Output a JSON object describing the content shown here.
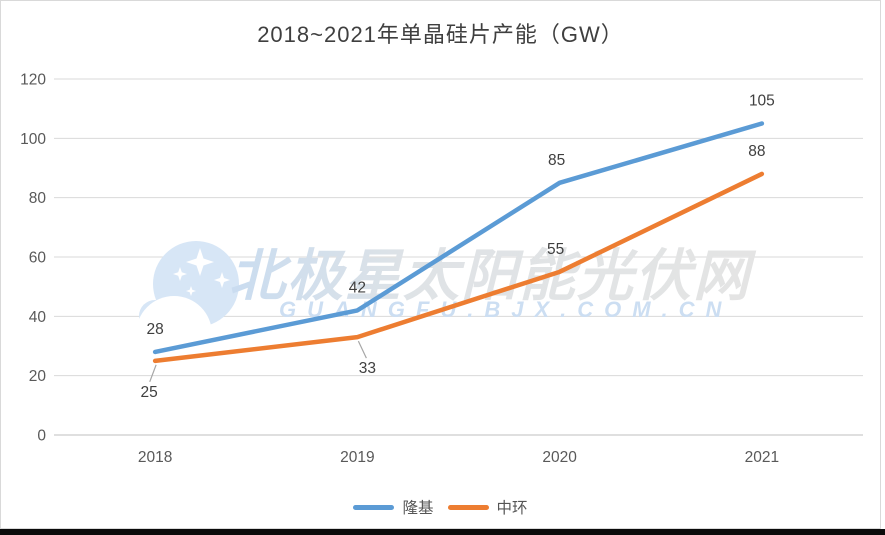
{
  "chart_data": {
    "type": "line",
    "title": "2018~2021年单晶硅片产能（GW）",
    "categories": [
      "2018",
      "2019",
      "2020",
      "2021"
    ],
    "series": [
      {
        "name": "隆基",
        "color": "#5B9BD5",
        "values": [
          28,
          42,
          85,
          105
        ],
        "label_sides": [
          "above",
          "above",
          "above",
          "above"
        ],
        "label_dx": [
          0,
          0,
          -3,
          0
        ]
      },
      {
        "name": "中环",
        "color": "#ED7D31",
        "values": [
          25,
          33,
          55,
          88
        ],
        "label_sides": [
          "below",
          "below",
          "above",
          "above"
        ],
        "label_dx": [
          -6,
          10,
          -4,
          -5
        ]
      }
    ],
    "xlabel": "",
    "ylabel": "",
    "ylim": [
      0,
      120
    ],
    "ytick_step": 20,
    "grid": true,
    "legend_position": "bottom"
  },
  "watermark": {
    "logo": "crescent-moon-with-stars",
    "text": "北极星太阳能光伏网",
    "url": "GUANGFU.BJX.COM.CN"
  },
  "colors": {
    "gridline": "#D9D9D9",
    "zero_axis": "#BFBFBF",
    "leader_line": "#A6A6A6",
    "axis_text": "#595959",
    "data_label_text": "#3F3F3F",
    "title_text": "#3F3F3F",
    "watermark_blue": "#CCDEF2"
  }
}
